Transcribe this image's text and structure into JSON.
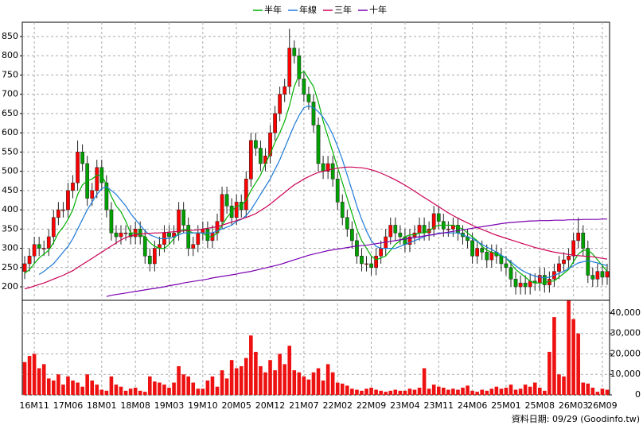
{
  "chart_data": {
    "type": "candlestick",
    "source": "資料日期: 09/29 (Goodinfo.tw)",
    "up_color": "#ff0000",
    "down_color": "#00a000",
    "grid": true,
    "categories": [
      null,
      null,
      "16M11",
      null,
      null,
      null,
      null,
      null,
      null,
      "17M06",
      null,
      null,
      null,
      null,
      null,
      null,
      "18M01",
      null,
      null,
      null,
      null,
      null,
      null,
      "18M08",
      null,
      null,
      null,
      null,
      null,
      null,
      "19M03",
      null,
      null,
      null,
      null,
      null,
      null,
      "19M10",
      null,
      null,
      null,
      null,
      null,
      null,
      "20M05",
      null,
      null,
      null,
      null,
      null,
      null,
      "20M12",
      null,
      null,
      null,
      null,
      null,
      null,
      "21M07",
      null,
      null,
      null,
      null,
      null,
      null,
      "22M02",
      null,
      null,
      null,
      null,
      null,
      null,
      "22M09",
      null,
      null,
      null,
      null,
      null,
      null,
      "23M04",
      null,
      null,
      null,
      null,
      null,
      null,
      "23M11",
      null,
      null,
      null,
      null,
      null,
      null,
      "24M06",
      null,
      null,
      null,
      null,
      null,
      null,
      "25M01",
      null,
      null,
      null,
      null,
      null,
      null,
      "25M08",
      null,
      null,
      null,
      null,
      null,
      null,
      "26M03",
      null,
      null,
      null,
      null,
      null,
      "26M09",
      null
    ],
    "open": [
      240,
      260,
      280,
      310,
      300,
      300,
      330,
      380,
      400,
      400,
      450,
      470,
      550,
      520,
      430,
      450,
      510,
      470,
      400,
      340,
      330,
      340,
      340,
      330,
      350,
      330,
      280,
      260,
      300,
      310,
      340,
      330,
      340,
      400,
      360,
      300,
      310,
      340,
      350,
      320,
      340,
      370,
      440,
      410,
      380,
      420,
      400,
      480,
      580,
      560,
      520,
      540,
      600,
      650,
      700,
      720,
      820,
      800,
      740,
      700,
      680,
      620,
      520,
      500,
      520,
      480,
      420,
      380,
      350,
      320,
      280,
      260,
      260,
      250,
      280,
      300,
      330,
      360,
      340,
      330,
      310,
      330,
      340,
      360,
      340,
      350,
      390,
      370,
      350,
      350,
      360,
      340,
      330,
      320,
      280,
      300,
      290,
      270,
      290,
      280,
      260,
      250,
      220,
      200,
      210,
      200,
      215,
      210,
      230,
      205,
      220,
      240,
      260,
      270,
      280,
      320,
      340,
      300,
      230,
      220,
      240,
      225
    ],
    "high": [
      280,
      300,
      330,
      330,
      320,
      350,
      400,
      420,
      420,
      470,
      490,
      580,
      570,
      540,
      470,
      530,
      530,
      490,
      420,
      360,
      360,
      360,
      360,
      370,
      370,
      350,
      300,
      320,
      330,
      360,
      360,
      360,
      420,
      420,
      380,
      330,
      360,
      370,
      370,
      360,
      390,
      460,
      460,
      430,
      440,
      440,
      500,
      600,
      600,
      580,
      560,
      620,
      670,
      720,
      740,
      870,
      840,
      820,
      760,
      720,
      700,
      640,
      540,
      540,
      540,
      500,
      440,
      400,
      370,
      340,
      300,
      280,
      280,
      300,
      320,
      350,
      380,
      380,
      360,
      350,
      350,
      360,
      380,
      380,
      370,
      410,
      410,
      390,
      370,
      380,
      380,
      360,
      350,
      340,
      320,
      320,
      310,
      310,
      310,
      300,
      280,
      270,
      240,
      230,
      230,
      235,
      235,
      250,
      250,
      240,
      260,
      280,
      290,
      300,
      340,
      380,
      360,
      320,
      250,
      260,
      260,
      260
    ],
    "low": [
      220,
      240,
      260,
      280,
      280,
      280,
      310,
      360,
      380,
      380,
      430,
      450,
      500,
      410,
      410,
      430,
      450,
      380,
      320,
      310,
      310,
      320,
      310,
      310,
      310,
      260,
      240,
      240,
      280,
      290,
      310,
      310,
      320,
      340,
      280,
      280,
      290,
      320,
      300,
      300,
      320,
      350,
      390,
      360,
      360,
      380,
      380,
      460,
      540,
      500,
      500,
      520,
      580,
      630,
      680,
      700,
      780,
      720,
      680,
      660,
      600,
      500,
      480,
      480,
      460,
      400,
      360,
      330,
      300,
      260,
      240,
      240,
      230,
      230,
      260,
      280,
      310,
      320,
      310,
      290,
      290,
      310,
      320,
      320,
      320,
      330,
      350,
      330,
      330,
      330,
      320,
      310,
      300,
      260,
      260,
      270,
      250,
      250,
      260,
      240,
      230,
      200,
      180,
      180,
      180,
      180,
      190,
      190,
      185,
      185,
      200,
      220,
      240,
      250,
      260,
      300,
      280,
      210,
      200,
      200,
      205,
      205
    ],
    "close": [
      260,
      280,
      310,
      300,
      300,
      330,
      380,
      400,
      400,
      450,
      470,
      550,
      520,
      430,
      450,
      510,
      470,
      400,
      340,
      330,
      340,
      340,
      330,
      350,
      330,
      280,
      260,
      300,
      310,
      340,
      330,
      340,
      400,
      360,
      300,
      310,
      340,
      350,
      320,
      340,
      370,
      440,
      410,
      380,
      420,
      400,
      480,
      580,
      560,
      520,
      540,
      600,
      650,
      700,
      720,
      820,
      800,
      740,
      700,
      680,
      620,
      520,
      500,
      520,
      480,
      420,
      380,
      350,
      320,
      280,
      260,
      260,
      250,
      280,
      300,
      330,
      360,
      340,
      330,
      310,
      330,
      340,
      360,
      340,
      350,
      390,
      370,
      350,
      350,
      360,
      340,
      330,
      320,
      280,
      300,
      290,
      270,
      290,
      280,
      260,
      250,
      220,
      200,
      210,
      200,
      215,
      210,
      230,
      205,
      220,
      240,
      260,
      270,
      280,
      320,
      340,
      300,
      230,
      220,
      240,
      225,
      240
    ],
    "series": [
      {
        "name": "半年",
        "color": "#00b000",
        "values": [
          235,
          245,
          260,
          275,
          285,
          295,
          315,
          340,
          355,
          375,
          400,
          440,
          465,
          475,
          480,
          490,
          490,
          465,
          435,
          410,
          395,
          370,
          340,
          340,
          335,
          330,
          315,
          305,
          300,
          300,
          310,
          325,
          340,
          350,
          345,
          340,
          340,
          340,
          330,
          330,
          340,
          360,
          380,
          395,
          410,
          410,
          425,
          450,
          470,
          490,
          520,
          545,
          575,
          600,
          630,
          670,
          720,
          750,
          760,
          740,
          720,
          680,
          630,
          590,
          550,
          510,
          470,
          430,
          390,
          350,
          320,
          300,
          280,
          270,
          275,
          280,
          295,
          310,
          320,
          330,
          335,
          335,
          340,
          340,
          345,
          355,
          360,
          360,
          360,
          360,
          355,
          350,
          340,
          330,
          320,
          305,
          295,
          290,
          285,
          280,
          275,
          260,
          245,
          235,
          225,
          215,
          210,
          210,
          210,
          215,
          215,
          225,
          235,
          245,
          265,
          285,
          295,
          295,
          285,
          270,
          255,
          240
        ]
      },
      {
        "name": "年線",
        "color": "#1e7ad8",
        "values": [
          null,
          null,
          null,
          232,
          240,
          250,
          260,
          275,
          290,
          305,
          325,
          350,
          375,
          400,
          420,
          440,
          455,
          460,
          450,
          440,
          425,
          410,
          390,
          375,
          360,
          345,
          335,
          330,
          325,
          325,
          325,
          330,
          335,
          340,
          340,
          340,
          340,
          340,
          340,
          340,
          345,
          350,
          355,
          360,
          370,
          375,
          385,
          400,
          420,
          440,
          460,
          480,
          505,
          530,
          560,
          590,
          620,
          645,
          665,
          670,
          665,
          655,
          640,
          620,
          595,
          565,
          530,
          490,
          450,
          410,
          375,
          345,
          320,
          305,
          300,
          300,
          300,
          300,
          305,
          310,
          315,
          320,
          325,
          330,
          335,
          335,
          340,
          340,
          340,
          340,
          340,
          335,
          330,
          325,
          318,
          310,
          303,
          297,
          290,
          282,
          275,
          265,
          255,
          245,
          238,
          232,
          228,
          225,
          223,
          225,
          230,
          235,
          240,
          248,
          255,
          262,
          265,
          268,
          265,
          262,
          258,
          255
        ]
      },
      {
        "name": "三年",
        "color": "#cc0055",
        "values": [
          195,
          198,
          202,
          206,
          210,
          215,
          220,
          225,
          230,
          236,
          242,
          250,
          258,
          266,
          274,
          282,
          290,
          298,
          306,
          314,
          322,
          328,
          332,
          335,
          337,
          338,
          339,
          340,
          340,
          341,
          342,
          343,
          344,
          345,
          346,
          347,
          348,
          350,
          352,
          354,
          356,
          360,
          364,
          368,
          372,
          376,
          380,
          385,
          390,
          398,
          406,
          415,
          425,
          435,
          445,
          455,
          465,
          472,
          480,
          486,
          492,
          497,
          500,
          503,
          506,
          508,
          510,
          511,
          511,
          510,
          509,
          507,
          504,
          500,
          495,
          490,
          484,
          478,
          471,
          464,
          456,
          448,
          440,
          432,
          424,
          416,
          408,
          400,
          392,
          385,
          378,
          372,
          366,
          360,
          354,
          349,
          344,
          339,
          334,
          330,
          326,
          322,
          318,
          314,
          310,
          306,
          302,
          299,
          296,
          293,
          290,
          288,
          286,
          284,
          282,
          281,
          280,
          279,
          278,
          276,
          274,
          272
        ]
      },
      {
        "name": "十年",
        "color": "#7a00b0",
        "values": [
          null,
          null,
          null,
          null,
          null,
          null,
          null,
          null,
          null,
          null,
          null,
          null,
          null,
          null,
          null,
          null,
          null,
          175,
          178,
          180,
          182,
          184,
          186,
          188,
          190,
          192,
          194,
          196,
          198,
          200,
          203,
          205,
          207,
          210,
          212,
          214,
          216,
          218,
          220,
          223,
          225,
          227,
          229,
          231,
          233,
          236,
          238,
          240,
          243,
          246,
          249,
          252,
          255,
          258,
          262,
          266,
          270,
          274,
          278,
          282,
          285,
          288,
          291,
          294,
          296,
          298,
          300,
          302,
          304,
          306,
          307,
          308,
          310,
          312,
          314,
          316,
          318,
          320,
          322,
          324,
          326,
          328,
          330,
          332,
          334,
          336,
          338,
          340,
          342,
          344,
          346,
          348,
          350,
          352,
          354,
          356,
          358,
          360,
          362,
          364,
          366,
          367,
          368,
          369,
          370,
          371,
          371,
          372,
          372,
          372,
          373,
          373,
          373,
          374,
          374,
          374,
          375,
          375,
          375,
          375,
          376,
          376
        ]
      }
    ],
    "ylim": [
      165,
      887
    ],
    "yticks": [
      200,
      250,
      300,
      350,
      400,
      450,
      500,
      550,
      600,
      650,
      700,
      750,
      800,
      850
    ],
    "volume": {
      "color": "#ee1111",
      "ylim": [
        0,
        46200
      ],
      "yticks": [
        0,
        {
          "value": 10000,
          "label": "10,000"
        },
        {
          "value": 20000,
          "label": "20,000"
        },
        {
          "value": 30000,
          "label": "30,000"
        },
        {
          "value": 40000,
          "label": "40,000"
        }
      ],
      "values": [
        16000,
        19000,
        20000,
        13000,
        15000,
        8000,
        7000,
        10000,
        5000,
        9000,
        7000,
        6000,
        4000,
        10000,
        7000,
        5000,
        2500,
        2000,
        9000,
        5000,
        4000,
        2000,
        3000,
        3500,
        2000,
        1500,
        9000,
        6500,
        6000,
        5000,
        3500,
        6000,
        14000,
        10000,
        9000,
        6000,
        3000,
        3000,
        7000,
        9000,
        4000,
        12000,
        8000,
        17000,
        13000,
        14000,
        18000,
        29000,
        21000,
        14000,
        11000,
        17000,
        12000,
        20000,
        15000,
        24000,
        12000,
        11000,
        9000,
        7500,
        11000,
        13000,
        7000,
        15000,
        11000,
        6000,
        5500,
        4500,
        3000,
        2500,
        2000,
        3000,
        3500,
        2500,
        2000,
        1500,
        2000,
        2500,
        2000,
        2000,
        3000,
        2500,
        3500,
        13000,
        3000,
        5000,
        4000,
        3500,
        2500,
        3000,
        2500,
        3500,
        4500,
        2000,
        1500,
        2500,
        2000,
        3000,
        4000,
        3000,
        3500,
        5000,
        2500,
        3000,
        5000,
        4000,
        6000,
        3500,
        2000,
        21000,
        38000,
        10000,
        9000,
        46000,
        37000,
        30000,
        6000,
        5500,
        3500,
        1500,
        3000,
        2500
      ]
    }
  }
}
